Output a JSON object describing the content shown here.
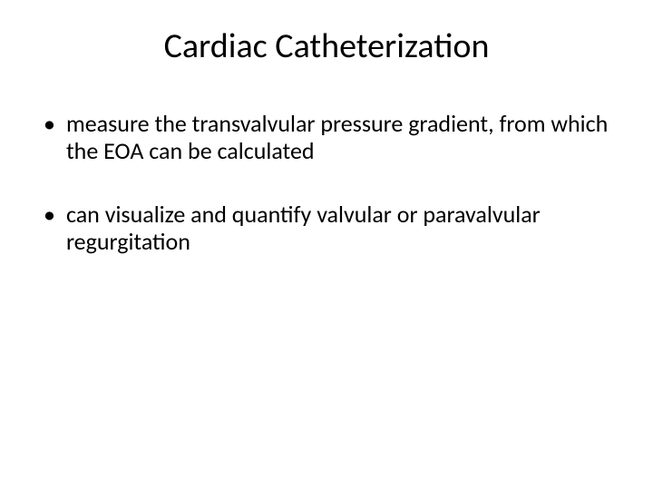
{
  "slide": {
    "title": "Cardiac Catheterization",
    "title_fontsize": 38,
    "background_color": "#ffffff",
    "text_color": "#000000",
    "bullets": [
      {
        "marker": "•",
        "text": " measure the transvalvular pressure gradient, from which the EOA can be calculated"
      },
      {
        "marker": "•",
        "text": " can visualize and quantify valvular or paravalvular regurgitation"
      }
    ],
    "bullet_fontsize": 26
  }
}
